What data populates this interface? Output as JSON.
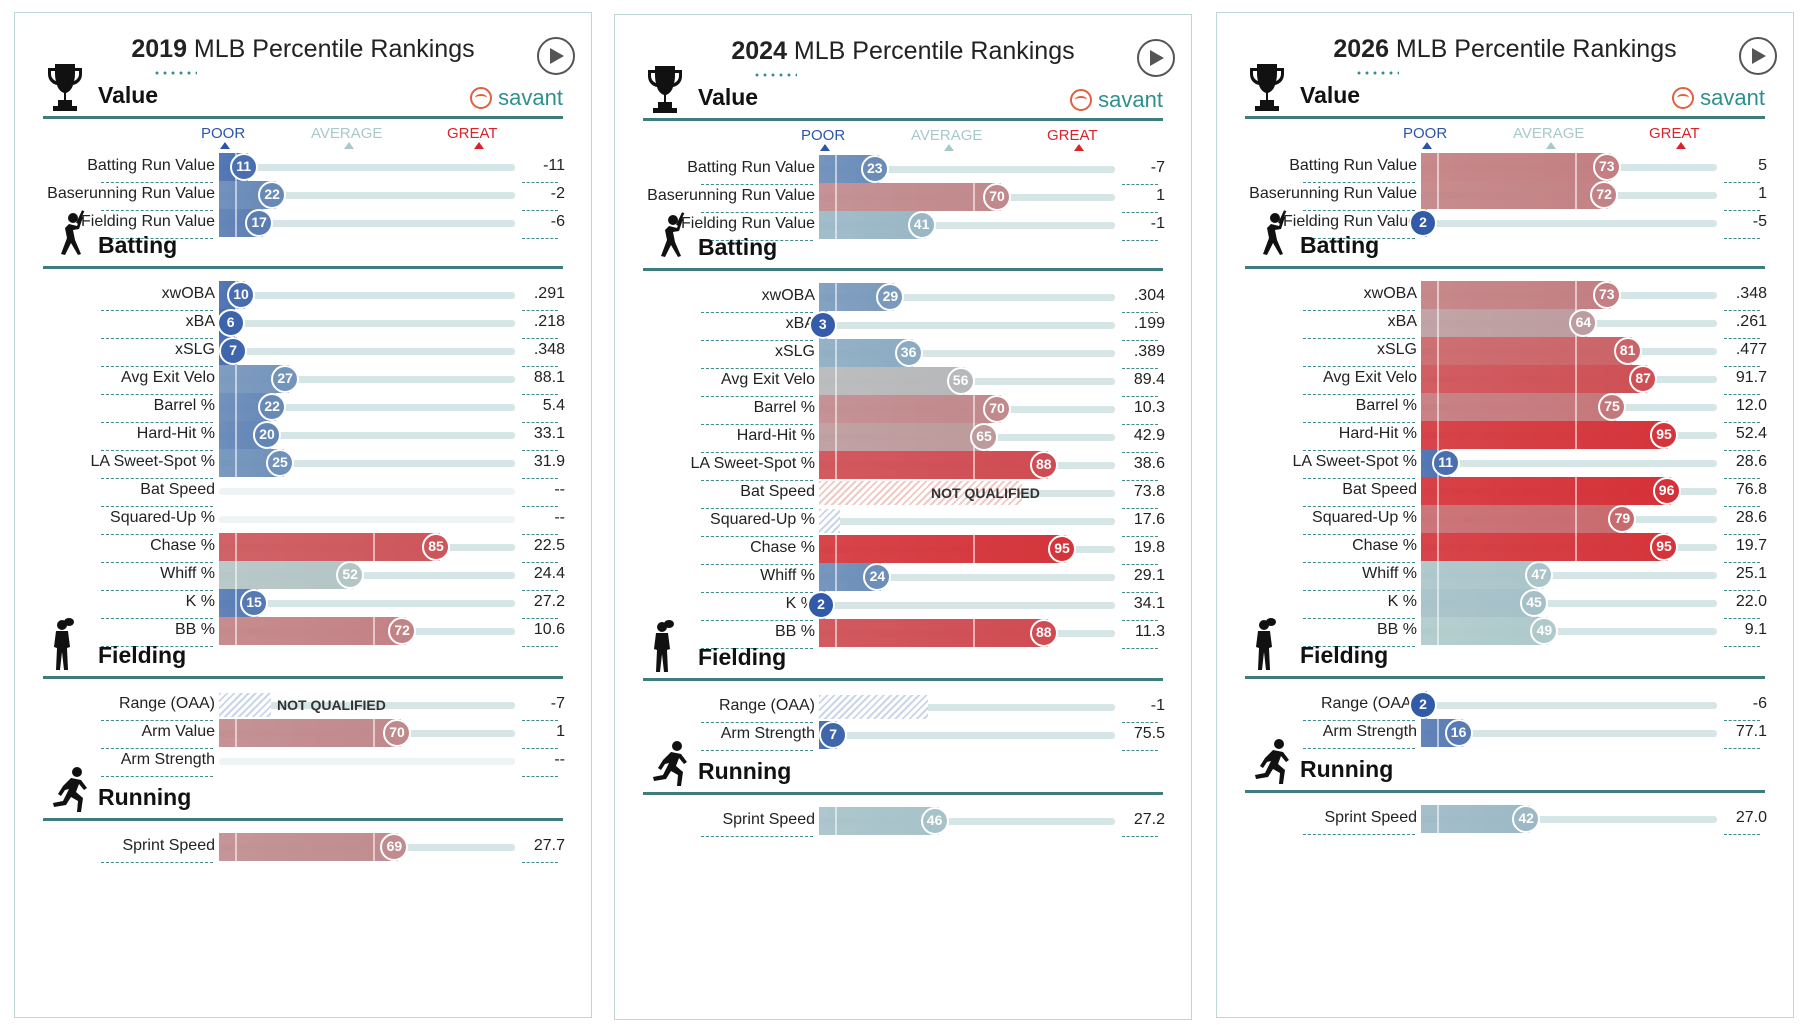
{
  "colors": {
    "accent": "#2f8f8f",
    "rule": "#3e7d7d",
    "poor": "#2c55a8",
    "average": "#a8c9c9",
    "great": "#d8242b"
  },
  "scale": {
    "poor": "POOR",
    "average": "AVERAGE",
    "great": "GREAT"
  },
  "savant_label": "savant",
  "not_qualified": "NOT QUALIFIED",
  "panels": [
    {
      "year": "2019",
      "title_rest": "MLB Percentile Rankings",
      "sections": [
        {
          "name": "Value",
          "icon": "trophy-icon",
          "show_savant": true,
          "show_scale": true,
          "rows": [
            {
              "label": "Batting Run Value",
              "pct": 11,
              "value": "-11"
            },
            {
              "label": "Baserunning Run Value",
              "pct": 22,
              "value": "-2"
            },
            {
              "label": "Fielding Run Value",
              "pct": 17,
              "value": "-6"
            }
          ]
        },
        {
          "name": "Batting",
          "icon": "batter-icon",
          "rows": [
            {
              "label": "xwOBA",
              "pct": 10,
              "value": ".291"
            },
            {
              "label": "xBA",
              "pct": 6,
              "value": ".218"
            },
            {
              "label": "xSLG",
              "pct": 7,
              "value": ".348"
            },
            {
              "label": "Avg Exit Velo",
              "pct": 27,
              "value": "88.1"
            },
            {
              "label": "Barrel %",
              "pct": 22,
              "value": "5.4"
            },
            {
              "label": "Hard-Hit %",
              "pct": 20,
              "value": "33.1"
            },
            {
              "label": "LA Sweet-Spot %",
              "pct": 25,
              "value": "31.9"
            },
            {
              "label": "Bat Speed",
              "pct": null,
              "value": "--"
            },
            {
              "label": "Squared-Up %",
              "pct": null,
              "value": "--"
            },
            {
              "label": "Chase %",
              "pct": 85,
              "value": "22.5"
            },
            {
              "label": "Whiff %",
              "pct": 52,
              "value": "24.4"
            },
            {
              "label": "K %",
              "pct": 15,
              "value": "27.2"
            },
            {
              "label": "BB %",
              "pct": 72,
              "value": "10.6"
            }
          ]
        },
        {
          "name": "Fielding",
          "icon": "fielder-icon",
          "rows": [
            {
              "label": "Range (OAA)",
              "pct": null,
              "nq": true,
              "hatch": 0.2,
              "value": "-7"
            },
            {
              "label": "Arm Value",
              "pct": 70,
              "value": "1"
            },
            {
              "label": "Arm Strength",
              "pct": null,
              "value": "--"
            }
          ]
        },
        {
          "name": "Running",
          "icon": "runner-icon",
          "rows": [
            {
              "label": "Sprint Speed",
              "pct": 69,
              "value": "27.7"
            }
          ]
        }
      ]
    },
    {
      "year": "2024",
      "title_rest": "MLB Percentile Rankings",
      "sections": [
        {
          "name": "Value",
          "icon": "trophy-icon",
          "show_savant": true,
          "show_scale": true,
          "rows": [
            {
              "label": "Batting Run Value",
              "pct": 23,
              "value": "-7"
            },
            {
              "label": "Baserunning Run Value",
              "pct": 70,
              "value": "1"
            },
            {
              "label": "Fielding Run Value",
              "pct": 41,
              "value": "-1"
            }
          ]
        },
        {
          "name": "Batting",
          "icon": "batter-icon",
          "rows": [
            {
              "label": "xwOBA",
              "pct": 29,
              "value": ".304"
            },
            {
              "label": "xBA",
              "pct": 3,
              "value": ".199"
            },
            {
              "label": "xSLG",
              "pct": 36,
              "value": ".389"
            },
            {
              "label": "Avg Exit Velo",
              "pct": 56,
              "value": "89.4"
            },
            {
              "label": "Barrel %",
              "pct": 70,
              "value": "10.3"
            },
            {
              "label": "Hard-Hit %",
              "pct": 65,
              "value": "42.9"
            },
            {
              "label": "LA Sweet-Spot %",
              "pct": 88,
              "value": "38.6"
            },
            {
              "label": "Bat Speed",
              "pct": null,
              "nq": true,
              "hatch": 0.78,
              "hatchColor": "red",
              "value": "73.8"
            },
            {
              "label": "Squared-Up %",
              "pct": null,
              "hatch": 0.08,
              "value": "17.6"
            },
            {
              "label": "Chase %",
              "pct": 95,
              "value": "19.8"
            },
            {
              "label": "Whiff %",
              "pct": 24,
              "value": "29.1"
            },
            {
              "label": "K %",
              "pct": 2,
              "value": "34.1"
            },
            {
              "label": "BB %",
              "pct": 88,
              "value": "11.3"
            }
          ]
        },
        {
          "name": "Fielding",
          "icon": "fielder-icon",
          "rows": [
            {
              "label": "Range (OAA)",
              "pct": null,
              "hatch": 0.42,
              "value": "-1"
            },
            {
              "label": "Arm Strength",
              "pct": 7,
              "value": "75.5"
            }
          ]
        },
        {
          "name": "Running",
          "icon": "runner-icon",
          "rows": [
            {
              "label": "Sprint Speed",
              "pct": 46,
              "value": "27.2"
            }
          ]
        }
      ]
    },
    {
      "year": "2026",
      "title_rest": "MLB Percentile Rankings",
      "sections": [
        {
          "name": "Value",
          "icon": "trophy-icon",
          "show_savant": true,
          "show_scale": true,
          "rows": [
            {
              "label": "Batting Run Value",
              "pct": 73,
              "value": "5"
            },
            {
              "label": "Baserunning Run Value",
              "pct": 72,
              "value": "1"
            },
            {
              "label": "Fielding Run Value",
              "pct": 2,
              "value": "-5"
            }
          ]
        },
        {
          "name": "Batting",
          "icon": "batter-icon",
          "rows": [
            {
              "label": "xwOBA",
              "pct": 73,
              "value": ".348"
            },
            {
              "label": "xBA",
              "pct": 64,
              "value": ".261"
            },
            {
              "label": "xSLG",
              "pct": 81,
              "value": ".477"
            },
            {
              "label": "Avg Exit Velo",
              "pct": 87,
              "value": "91.7"
            },
            {
              "label": "Barrel %",
              "pct": 75,
              "value": "12.0"
            },
            {
              "label": "Hard-Hit %",
              "pct": 95,
              "value": "52.4"
            },
            {
              "label": "LA Sweet-Spot %",
              "pct": 11,
              "value": "28.6"
            },
            {
              "label": "Bat Speed",
              "pct": 96,
              "value": "76.8"
            },
            {
              "label": "Squared-Up %",
              "pct": 79,
              "value": "28.6"
            },
            {
              "label": "Chase %",
              "pct": 95,
              "value": "19.7"
            },
            {
              "label": "Whiff %",
              "pct": 47,
              "value": "25.1"
            },
            {
              "label": "K %",
              "pct": 45,
              "value": "22.0"
            },
            {
              "label": "BB %",
              "pct": 49,
              "value": "9.1"
            }
          ]
        },
        {
          "name": "Fielding",
          "icon": "fielder-icon",
          "rows": [
            {
              "label": "Range (OAA)",
              "pct": 2,
              "value": "-6"
            },
            {
              "label": "Arm Strength",
              "pct": 16,
              "value": "77.1"
            }
          ]
        },
        {
          "name": "Running",
          "icon": "runner-icon",
          "rows": [
            {
              "label": "Sprint Speed",
              "pct": 42,
              "value": "27.0"
            }
          ]
        }
      ]
    }
  ]
}
